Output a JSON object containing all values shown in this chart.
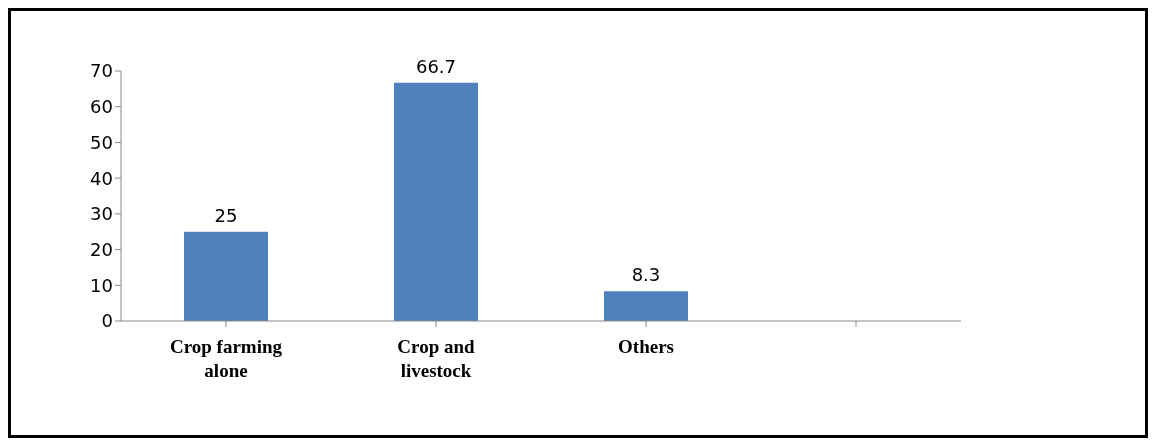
{
  "chart_data": {
    "type": "bar",
    "categories": [
      "Crop farming alone",
      "Crop and livestock",
      "Others",
      null
    ],
    "values": [
      25,
      66.7,
      8.3,
      null
    ],
    "color": "#4f81bd",
    "ylim": [
      0,
      70
    ],
    "yticks": [
      0,
      10,
      20,
      30,
      40,
      50,
      60,
      70
    ],
    "data_labels": true
  }
}
